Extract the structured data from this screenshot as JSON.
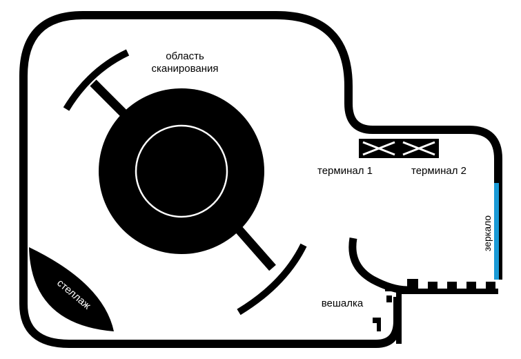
{
  "labels": {
    "scan_area_line1": "область",
    "scan_area_line2": "сканирования",
    "terminal_1": "терминал 1",
    "terminal_2": "терминал 2",
    "mirror": "зеркало",
    "hanger": "вешалка",
    "rack": "стеллаж"
  },
  "colors": {
    "wall": "#000000",
    "mirror": "#1a9ad6",
    "background": "#ffffff"
  },
  "icons": {
    "scanner": "scanner-ring-icon",
    "terminal": "terminal-cross-icon"
  }
}
